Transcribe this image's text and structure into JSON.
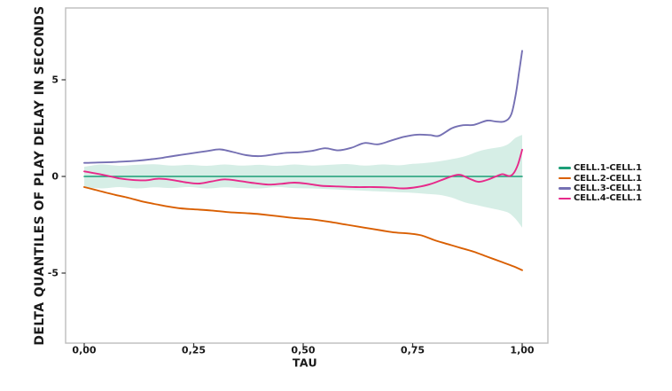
{
  "figure": {
    "background": "#ffffff",
    "panel_border": "#bdbdbd",
    "text_color": "#1a1a1a"
  },
  "chart_data": {
    "type": "line",
    "title": "",
    "xlabel": "TAU",
    "ylabel": "DELTA QUANTILES OF PLAY DELAY IN SECONDS",
    "style": "xkcd-hand-drawn",
    "grid": false,
    "xlim": [
      -0.05,
      1.06
    ],
    "ylim": [
      -8.6,
      8.8
    ],
    "x_ticks": [
      {
        "value": 0.0,
        "label": "0,00"
      },
      {
        "value": 0.25,
        "label": "0,25"
      },
      {
        "value": 0.5,
        "label": "0,50"
      },
      {
        "value": 0.75,
        "label": "0,75"
      },
      {
        "value": 1.0,
        "label": "1,00"
      }
    ],
    "y_ticks": [
      {
        "value": 5,
        "label": "5"
      },
      {
        "value": 0,
        "label": "0"
      },
      {
        "value": -5,
        "label": "-5"
      }
    ],
    "legend": {
      "position": "right",
      "entries": [
        {
          "label": "CELL.1-CELL.1",
          "color": "#1B9E77"
        },
        {
          "label": "CELL.2-CELL.1",
          "color": "#D95F02"
        },
        {
          "label": "CELL.3-CELL.1",
          "color": "#7570B3"
        },
        {
          "label": "CELL.4-CELL.1",
          "color": "#E7298A"
        }
      ]
    },
    "series": [
      {
        "name": "CELL.1-CELL.1",
        "color": "#1B9E77",
        "width": 1.6,
        "points": [
          [
            0,
            0
          ],
          [
            0.25,
            0
          ],
          [
            0.5,
            0
          ],
          [
            0.75,
            0
          ],
          [
            1,
            0
          ]
        ]
      },
      {
        "name": "CELL.2-CELL.1",
        "color": "#D95F02",
        "width": 1.9,
        "points": [
          [
            0,
            -0.55
          ],
          [
            0.02,
            -0.66
          ],
          [
            0.04,
            -0.78
          ],
          [
            0.07,
            -0.95
          ],
          [
            0.1,
            -1.1
          ],
          [
            0.13,
            -1.28
          ],
          [
            0.16,
            -1.42
          ],
          [
            0.19,
            -1.55
          ],
          [
            0.22,
            -1.65
          ],
          [
            0.25,
            -1.7
          ],
          [
            0.29,
            -1.76
          ],
          [
            0.33,
            -1.85
          ],
          [
            0.37,
            -1.9
          ],
          [
            0.4,
            -1.95
          ],
          [
            0.44,
            -2.05
          ],
          [
            0.48,
            -2.15
          ],
          [
            0.52,
            -2.22
          ],
          [
            0.56,
            -2.35
          ],
          [
            0.6,
            -2.5
          ],
          [
            0.64,
            -2.65
          ],
          [
            0.68,
            -2.8
          ],
          [
            0.71,
            -2.9
          ],
          [
            0.74,
            -2.95
          ],
          [
            0.77,
            -3.05
          ],
          [
            0.8,
            -3.3
          ],
          [
            0.83,
            -3.5
          ],
          [
            0.86,
            -3.7
          ],
          [
            0.89,
            -3.9
          ],
          [
            0.92,
            -4.15
          ],
          [
            0.95,
            -4.4
          ],
          [
            0.98,
            -4.65
          ],
          [
            1,
            -4.85
          ]
        ]
      },
      {
        "name": "CELL.3-CELL.1",
        "color": "#7570B3",
        "width": 1.9,
        "points": [
          [
            0,
            0.7
          ],
          [
            0.03,
            0.72
          ],
          [
            0.06,
            0.74
          ],
          [
            0.09,
            0.77
          ],
          [
            0.12,
            0.81
          ],
          [
            0.15,
            0.88
          ],
          [
            0.18,
            0.97
          ],
          [
            0.21,
            1.08
          ],
          [
            0.24,
            1.18
          ],
          [
            0.28,
            1.31
          ],
          [
            0.31,
            1.4
          ],
          [
            0.34,
            1.26
          ],
          [
            0.37,
            1.1
          ],
          [
            0.4,
            1.05
          ],
          [
            0.43,
            1.13
          ],
          [
            0.46,
            1.22
          ],
          [
            0.49,
            1.25
          ],
          [
            0.52,
            1.32
          ],
          [
            0.55,
            1.46
          ],
          [
            0.58,
            1.35
          ],
          [
            0.61,
            1.48
          ],
          [
            0.64,
            1.73
          ],
          [
            0.67,
            1.66
          ],
          [
            0.7,
            1.85
          ],
          [
            0.73,
            2.05
          ],
          [
            0.76,
            2.16
          ],
          [
            0.79,
            2.14
          ],
          [
            0.81,
            2.1
          ],
          [
            0.84,
            2.5
          ],
          [
            0.865,
            2.65
          ],
          [
            0.89,
            2.67
          ],
          [
            0.92,
            2.89
          ],
          [
            0.94,
            2.84
          ],
          [
            0.96,
            2.85
          ],
          [
            0.975,
            3.2
          ],
          [
            0.985,
            4.2
          ],
          [
            0.993,
            5.4
          ],
          [
            1,
            6.5
          ]
        ]
      },
      {
        "name": "CELL.4-CELL.1",
        "color": "#E7298A",
        "width": 1.9,
        "points": [
          [
            0,
            0.26
          ],
          [
            0.02,
            0.18
          ],
          [
            0.05,
            0.05
          ],
          [
            0.08,
            -0.1
          ],
          [
            0.11,
            -0.18
          ],
          [
            0.14,
            -0.2
          ],
          [
            0.17,
            -0.12
          ],
          [
            0.2,
            -0.18
          ],
          [
            0.23,
            -0.3
          ],
          [
            0.26,
            -0.37
          ],
          [
            0.29,
            -0.26
          ],
          [
            0.32,
            -0.15
          ],
          [
            0.35,
            -0.22
          ],
          [
            0.38,
            -0.32
          ],
          [
            0.42,
            -0.42
          ],
          [
            0.45,
            -0.38
          ],
          [
            0.48,
            -0.32
          ],
          [
            0.51,
            -0.38
          ],
          [
            0.54,
            -0.48
          ],
          [
            0.58,
            -0.52
          ],
          [
            0.62,
            -0.55
          ],
          [
            0.66,
            -0.55
          ],
          [
            0.7,
            -0.58
          ],
          [
            0.73,
            -0.62
          ],
          [
            0.76,
            -0.55
          ],
          [
            0.79,
            -0.4
          ],
          [
            0.82,
            -0.15
          ],
          [
            0.845,
            0.05
          ],
          [
            0.86,
            0.08
          ],
          [
            0.88,
            -0.12
          ],
          [
            0.9,
            -0.28
          ],
          [
            0.92,
            -0.18
          ],
          [
            0.94,
            0
          ],
          [
            0.955,
            0.12
          ],
          [
            0.97,
            0.02
          ],
          [
            0.98,
            0.15
          ],
          [
            0.99,
            0.6
          ],
          [
            1,
            1.38
          ]
        ]
      }
    ],
    "band": {
      "series": "CELL.1-CELL.1",
      "fill": "#1B9E77",
      "opacity": 0.18,
      "x": [
        0,
        0.04,
        0.08,
        0.12,
        0.16,
        0.2,
        0.24,
        0.28,
        0.32,
        0.36,
        0.4,
        0.44,
        0.48,
        0.52,
        0.56,
        0.6,
        0.64,
        0.68,
        0.72,
        0.75,
        0.78,
        0.81,
        0.84,
        0.87,
        0.9,
        0.93,
        0.955,
        0.97,
        0.985,
        1.0
      ],
      "upper": [
        0.5,
        0.62,
        0.55,
        0.6,
        0.63,
        0.56,
        0.6,
        0.55,
        0.62,
        0.56,
        0.6,
        0.55,
        0.62,
        0.56,
        0.6,
        0.64,
        0.56,
        0.62,
        0.58,
        0.65,
        0.7,
        0.78,
        0.9,
        1.05,
        1.3,
        1.45,
        1.55,
        1.7,
        2.0,
        2.15
      ],
      "lower": [
        -0.55,
        -0.62,
        -0.55,
        -0.62,
        -0.56,
        -0.6,
        -0.55,
        -0.62,
        -0.56,
        -0.6,
        -0.62,
        -0.55,
        -0.6,
        -0.62,
        -0.66,
        -0.7,
        -0.74,
        -0.78,
        -0.82,
        -0.85,
        -0.9,
        -0.95,
        -1.1,
        -1.35,
        -1.5,
        -1.65,
        -1.78,
        -1.9,
        -2.2,
        -2.65
      ]
    }
  }
}
